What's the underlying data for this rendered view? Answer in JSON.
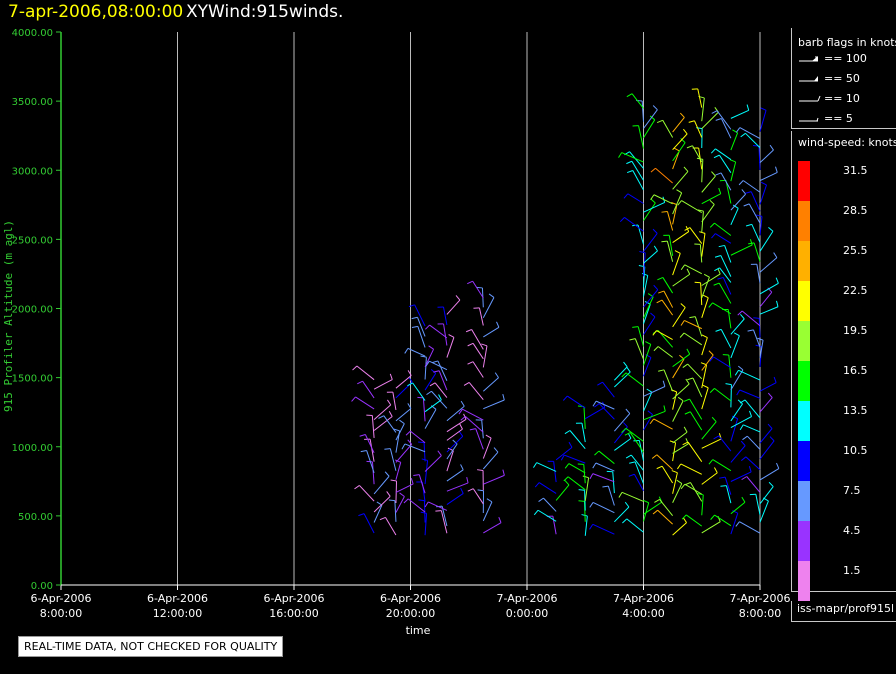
{
  "header": {
    "date": "7-apr-2006,08:00:00",
    "title": "XYWind:915winds."
  },
  "colors": {
    "axis": "#33cc33",
    "grid": "#bbbbbb",
    "speed_scale": [
      "#ee82ee",
      "#9933ff",
      "#6699ff",
      "#0000ff",
      "#00ffff",
      "#00ff00",
      "#99ff33",
      "#ffff00",
      "#ffb000",
      "#ff8000",
      "#ff0000"
    ]
  },
  "chart_data": {
    "type": "wind-barb time-height plot",
    "ylabel": "915 Profiler Altitude (m agl)",
    "xlabel": "time",
    "ylim": [
      0,
      4000
    ],
    "y_ticks": [
      "0.00",
      "500.00",
      "1000.00",
      "1500.00",
      "2000.00",
      "2500.00",
      "3000.00",
      "3500.00",
      "4000.00"
    ],
    "x_range_hours": [
      0,
      24
    ],
    "x_ticks": [
      {
        "date": "6-Apr-2006",
        "time": "8:00:00"
      },
      {
        "date": "6-Apr-2006",
        "time": "12:00:00"
      },
      {
        "date": "6-Apr-2006",
        "time": "16:00:00"
      },
      {
        "date": "6-Apr-2006",
        "time": "20:00:00"
      },
      {
        "date": "7-Apr-2006",
        "time": "0:00:00"
      },
      {
        "date": "7-Apr-2006",
        "time": "4:00:00"
      },
      {
        "date": "7-Apr-2006",
        "time": "8:00:00"
      }
    ],
    "grid": true,
    "profiles": [
      {
        "time": "6-Apr-2006 18:45",
        "top_m": 1500,
        "speed_knots": 4.5
      },
      {
        "time": "6-Apr-2006 19:30",
        "top_m": 1450,
        "speed_knots": 4.5
      },
      {
        "time": "6-Apr-2006 20:30",
        "top_m": 1900,
        "speed_knots": 7.5
      },
      {
        "time": "6-Apr-2006 21:15",
        "top_m": 2000,
        "speed_knots": 4.5
      },
      {
        "time": "6-Apr-2006 22:30",
        "top_m": 2150,
        "speed_knots": 4.5
      },
      {
        "time": "7-Apr-2006 01:00",
        "top_m": 900,
        "speed_knots": 10.5
      },
      {
        "time": "7-Apr-2006 02:00",
        "top_m": 1300,
        "speed_knots": 13.5
      },
      {
        "time": "7-Apr-2006 03:00",
        "top_m": 1500,
        "speed_knots": 10.5
      },
      {
        "time": "7-Apr-2006 04:00",
        "top_m": 3450,
        "speed_knots": 13.5
      },
      {
        "time": "7-Apr-2006 05:00",
        "top_m": 3300,
        "speed_knots": 22.5
      },
      {
        "time": "7-Apr-2006 06:00",
        "top_m": 3500,
        "speed_knots": 19.5
      },
      {
        "time": "7-Apr-2006 07:00",
        "top_m": 3400,
        "speed_knots": 13.5
      },
      {
        "time": "7-Apr-2006 08:00",
        "top_m": 3350,
        "speed_knots": 10.5
      }
    ]
  },
  "barb_legend": {
    "title": "barb flags in knots",
    "items": [
      "== 100",
      "== 50",
      "== 10",
      "== 5"
    ]
  },
  "speed_legend": {
    "title": "wind-speed: knots",
    "labels": [
      "31.5",
      "28.5",
      "25.5",
      "22.5",
      "19.5",
      "16.5",
      "13.5",
      "10.5",
      "7.5",
      "4.5",
      "1.5"
    ]
  },
  "source": "iss-mapr/prof915l",
  "notice": "REAL-TIME DATA, NOT CHECKED FOR QUALITY"
}
